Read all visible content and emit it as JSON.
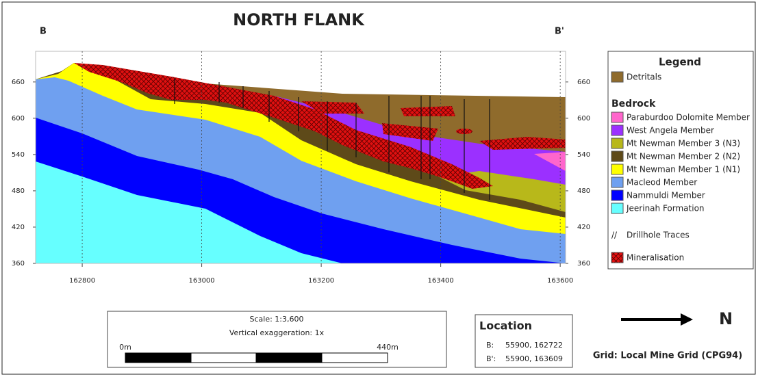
{
  "title": "NORTH FLANK",
  "section_start": "B",
  "section_end": "B'",
  "x_axis": {
    "xlim": [
      162722,
      163609
    ],
    "xticks": [
      162800,
      163000,
      163200,
      163400,
      163600
    ]
  },
  "y_axis": {
    "ylim": [
      360,
      696
    ],
    "yticks": [
      360,
      420,
      480,
      540,
      600,
      660
    ]
  },
  "legend": {
    "title": "Legend",
    "items": [
      {
        "label": "Detritals"
      },
      {
        "heading": "Bedrock"
      },
      {
        "label": "Paraburdoo Dolomite Member"
      },
      {
        "label": "West Angela Member"
      },
      {
        "label": "Mt Newman Member 3 (N3)"
      },
      {
        "label": "Mt Newman Member 2 (N2)"
      },
      {
        "label": "Mt Newman Member 1 (N1)"
      },
      {
        "label": "Macleod Member"
      },
      {
        "label": "Nammuldi Member"
      },
      {
        "label": "Jeerinah Formation"
      },
      {
        "symbol": "//",
        "label": "Drillhole Traces"
      },
      {
        "label": "Mineralisation"
      }
    ]
  },
  "scale": {
    "ratio": "Scale: 1:3,600",
    "exaggeration": "Vertical exaggeration: 1x",
    "start": "0m",
    "end": "440m"
  },
  "location": {
    "title": "Location",
    "rows": [
      [
        "B:",
        "55900, 162722"
      ],
      [
        "B':",
        "55900, 163609"
      ]
    ]
  },
  "north": "N",
  "grid_note": "Grid: Local Mine Grid (CPG94)"
}
